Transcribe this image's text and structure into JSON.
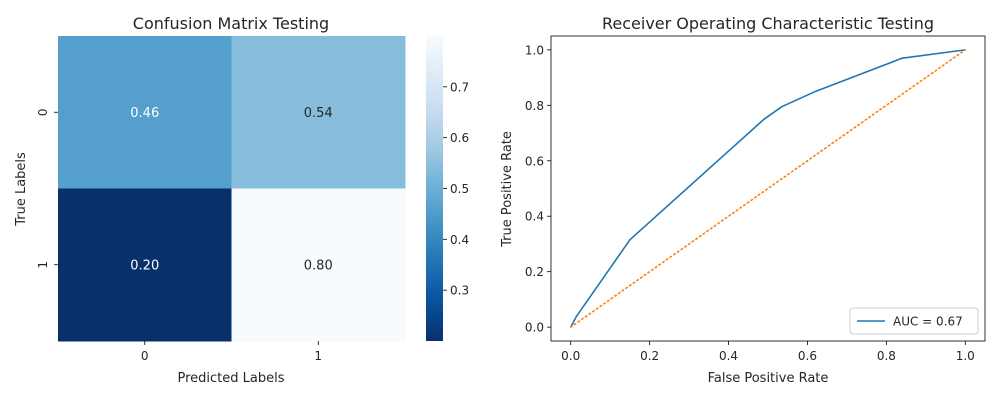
{
  "chart_data": [
    {
      "type": "heatmap",
      "title": "Confusion Matrix Testing",
      "xlabel": "Predicted Labels",
      "ylabel": "True Labels",
      "x_categories": [
        "0",
        "1"
      ],
      "y_categories": [
        "0",
        "1"
      ],
      "values": [
        [
          0.46,
          0.54
        ],
        [
          0.2,
          0.8
        ]
      ],
      "cell_labels": [
        [
          "0.46",
          "0.54"
        ],
        [
          "0.20",
          "0.80"
        ]
      ],
      "colormap": "Blues_r",
      "colorbar": {
        "range": [
          0.2,
          0.8
        ],
        "ticks": [
          0.3,
          0.4,
          0.5,
          0.6,
          0.7
        ],
        "tick_labels": [
          "0.3",
          "0.4",
          "0.5",
          "0.6",
          "0.7"
        ]
      }
    },
    {
      "type": "line",
      "title": "Receiver Operating Characteristic Testing",
      "xlabel": "False Positive Rate",
      "ylabel": "True Positive Rate",
      "xlim": [
        -0.05,
        1.05
      ],
      "ylim": [
        -0.05,
        1.05
      ],
      "xticks": [
        0.0,
        0.2,
        0.4,
        0.6,
        0.8,
        1.0
      ],
      "xtick_labels": [
        "0.0",
        "0.2",
        "0.4",
        "0.6",
        "0.8",
        "1.0"
      ],
      "yticks": [
        0.0,
        0.2,
        0.4,
        0.6,
        0.8,
        1.0
      ],
      "ytick_labels": [
        "0.0",
        "0.2",
        "0.4",
        "0.6",
        "0.8",
        "1.0"
      ],
      "grid": false,
      "legend_position": "lower-right",
      "series": [
        {
          "name": "AUC = 0.67",
          "color": "#1f77b4",
          "style": "solid",
          "x": [
            0.0,
            0.015,
            0.15,
            0.49,
            0.535,
            0.62,
            0.84,
            1.0
          ],
          "y": [
            0.0,
            0.04,
            0.315,
            0.75,
            0.795,
            0.85,
            0.97,
            1.0
          ]
        },
        {
          "name": "",
          "color": "#ff7f0e",
          "style": "dotted",
          "x": [
            0.0,
            1.0
          ],
          "y": [
            0.0,
            1.0
          ]
        }
      ]
    }
  ]
}
